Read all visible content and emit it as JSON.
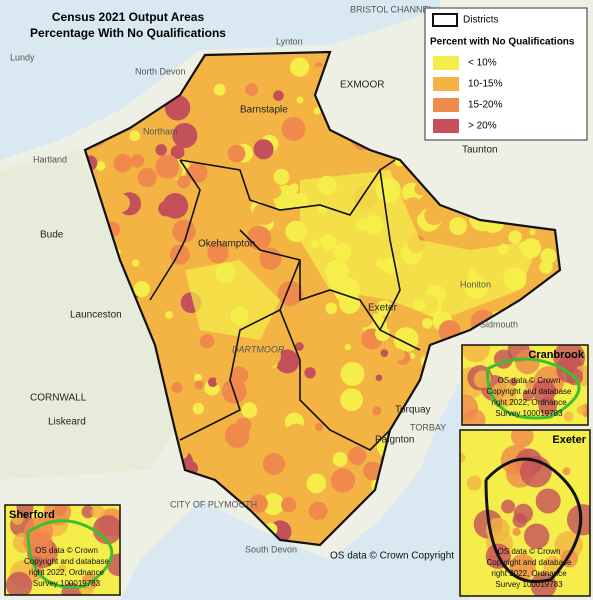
{
  "header": {
    "title": [
      "Census 2021 Output Areas",
      "Percentage With No Qualifications"
    ]
  },
  "legend": {
    "districts": "Districts",
    "heading": "Percent with No Qualifications",
    "classes": [
      {
        "label": "< 10%",
        "color": "#f5ee4a"
      },
      {
        "label": "10-15%",
        "color": "#f3b443"
      },
      {
        "label": "15-20%",
        "color": "#ef8a4c"
      },
      {
        "label": "> 20%",
        "color": "#c4505a"
      }
    ]
  },
  "places": [
    "BRISTOL CHANNEL",
    "Lundy",
    "North Devon",
    "Lynton",
    "EXMOOR",
    "Barnstaple",
    "Northam",
    "Hartland",
    "Taunton",
    "Bude",
    "Okehampton",
    "Launceston",
    "Exeter",
    "DARTMOOR",
    "CORNWALL",
    "Liskeard",
    "Torquay",
    "TORBAY",
    "Paignton",
    "CITY OF PLYMOUTH",
    "Sidmouth",
    "Honiton",
    "South Devon"
  ],
  "insets": [
    {
      "title": "Cranbrook",
      "copyright": [
        "OS data © Crown",
        "Copyright and database",
        "right 2022, Ordnance",
        "Survey 100019783"
      ]
    },
    {
      "title": "Exeter",
      "copyright": [
        "OS data © Crown",
        "Copyright and database",
        "right 2022, Ordnance",
        "Survey 100019783"
      ]
    },
    {
      "title": "Sherford",
      "copyright": [
        "OS data © Crown",
        "Copyright and database",
        "right 2022, Ordnance",
        "Survey 100019783"
      ]
    }
  ],
  "copyright": "OS data © Crown Copyright"
}
